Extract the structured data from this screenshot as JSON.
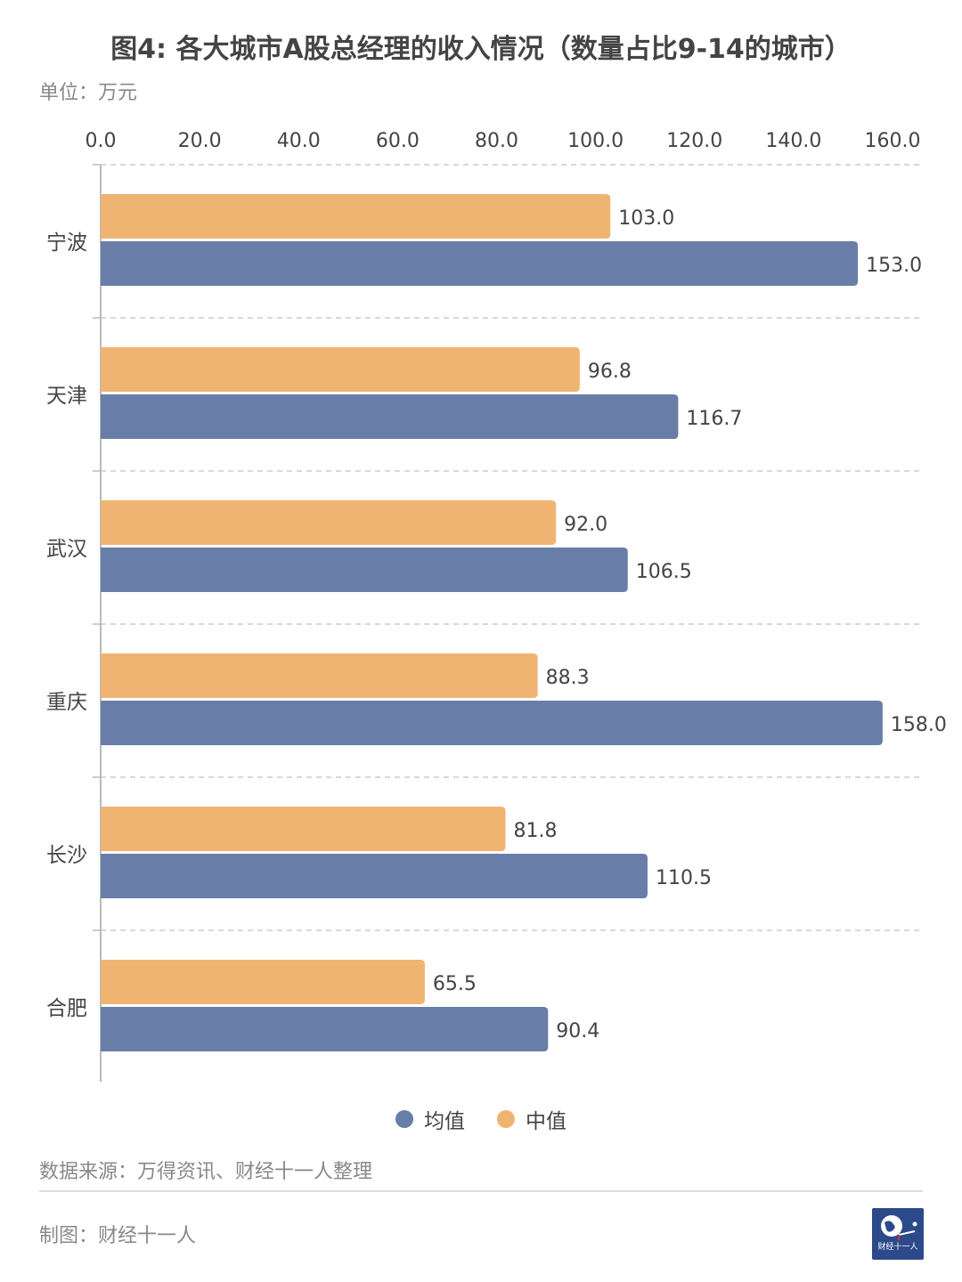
{
  "title": "图4: 各大城市A股总经理的收入情况（数量占比9-14的城市）",
  "unit": "单位：万元",
  "chart_data": {
    "type": "bar",
    "orientation": "horizontal",
    "categories": [
      "宁波",
      "天津",
      "武汉",
      "重庆",
      "长沙",
      "合肥"
    ],
    "series": [
      {
        "name": "中值",
        "color": "#F0B472",
        "values": [
          103.0,
          96.8,
          92.0,
          88.3,
          81.8,
          65.5
        ]
      },
      {
        "name": "均值",
        "color": "#687DA8",
        "values": [
          153.0,
          116.7,
          106.5,
          158.0,
          110.5,
          90.4
        ]
      }
    ],
    "xlim": [
      0,
      160
    ],
    "xticks": [
      "0.0",
      "20.0",
      "40.0",
      "60.0",
      "80.0",
      "100.0",
      "120.0",
      "140.0",
      "160.0"
    ],
    "x_axis_position": "top",
    "grid": "dashed horizontal separators",
    "legend_placement": "bottom",
    "data_labels": true
  },
  "legend": [
    {
      "label": "均值",
      "color": "#687DA8"
    },
    {
      "label": "中值",
      "color": "#F0B472"
    }
  ],
  "source": "数据来源：万得资讯、财经十一人整理",
  "credit": "制图：财经十一人",
  "logo": {
    "text": "财经十一人",
    "icon": "globe-runner-logo"
  }
}
